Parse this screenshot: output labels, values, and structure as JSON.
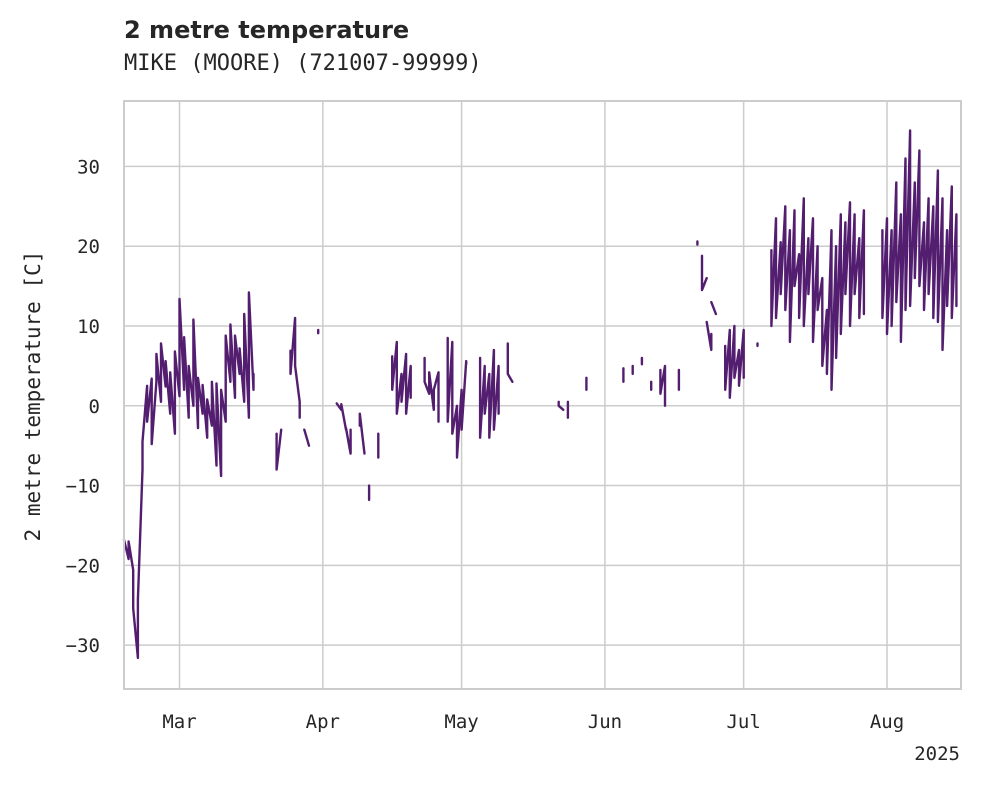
{
  "chart_data": {
    "type": "line",
    "title": "2 metre temperature",
    "subtitle": "MIKE (MOORE) (721007-99999)",
    "ylabel": "2 metre temperature [C]",
    "xlabel": "",
    "x_tick_labels": [
      "Mar",
      "Apr",
      "May",
      "Jun",
      "Jul",
      "Aug"
    ],
    "x_year_label": "2025",
    "y_ticks": [
      -30,
      -20,
      -10,
      0,
      10,
      20,
      30
    ],
    "xlim": [
      "2025-02-17",
      "2025-08-17"
    ],
    "ylim": [
      -35.5,
      38.2
    ],
    "grid": true,
    "colors": {
      "line": "#531e6f",
      "grid": "#cccccc",
      "frame": "#cccccc"
    },
    "series": [
      {
        "values": [
          [
            "2025-02-17",
            -16.8
          ],
          [
            "2025-02-18",
            -19.2
          ],
          [
            "2025-02-18",
            -17.0
          ],
          [
            "2025-02-19",
            -20.6
          ],
          [
            "2025-02-19",
            -25.4
          ],
          [
            "2025-02-20",
            -31.6
          ],
          [
            "2025-02-20",
            -24.3
          ],
          [
            "2025-02-21",
            -8.0
          ],
          [
            "2025-02-21",
            -4.5
          ],
          [
            "2025-02-22",
            2.5
          ],
          [
            "2025-02-22",
            -2.0
          ],
          [
            "2025-02-23",
            3.4
          ],
          [
            "2025-02-23",
            -4.8
          ],
          [
            "2025-02-24",
            3.0
          ],
          [
            "2025-02-24",
            6.5
          ],
          [
            "2025-02-25",
            0.5
          ],
          [
            "2025-02-25",
            7.8
          ],
          [
            "2025-02-26",
            2.4
          ],
          [
            "2025-02-26",
            5.6
          ],
          [
            "2025-02-27",
            -1.0
          ],
          [
            "2025-02-27",
            4.2
          ],
          [
            "2025-02-28",
            -3.5
          ],
          [
            "2025-02-28",
            6.8
          ],
          [
            "2025-03-01",
            1.2
          ],
          [
            "2025-03-01",
            13.4
          ],
          [
            "2025-03-02",
            2.0
          ],
          [
            "2025-03-02",
            8.6
          ],
          [
            "2025-03-03",
            -1.5
          ],
          [
            "2025-03-03",
            5.0
          ],
          [
            "2025-03-04",
            0.0
          ],
          [
            "2025-03-04",
            10.8
          ],
          [
            "2025-03-05",
            -2.8
          ],
          [
            "2025-03-05",
            3.5
          ],
          [
            "2025-03-06",
            -1.0
          ],
          [
            "2025-03-06",
            2.6
          ],
          [
            "2025-03-07",
            -4.0
          ],
          [
            "2025-03-07",
            0.8
          ],
          [
            "2025-03-08",
            -2.5
          ],
          [
            "2025-03-08",
            3.0
          ],
          [
            "2025-03-09",
            -7.5
          ],
          [
            "2025-03-09",
            2.8
          ],
          [
            "2025-03-10",
            -8.8
          ],
          [
            "2025-03-10",
            2.0
          ],
          [
            "2025-03-11",
            -2.0
          ],
          [
            "2025-03-11",
            8.8
          ],
          [
            "2025-03-12",
            3.0
          ],
          [
            "2025-03-12",
            10.2
          ],
          [
            "2025-03-13",
            1.0
          ],
          [
            "2025-03-13",
            8.8
          ],
          [
            "2025-03-14",
            4.0
          ],
          [
            "2025-03-14",
            7.2
          ],
          [
            "2025-03-15",
            0.5
          ],
          [
            "2025-03-15",
            11.5
          ],
          [
            "2025-03-16",
            -1.5
          ],
          [
            "2025-03-16",
            14.2
          ],
          [
            "2025-03-17",
            2.0
          ],
          [
            "2025-03-17",
            4.0
          ],
          null,
          [
            "2025-03-25",
            6.9
          ],
          [
            "2025-03-25",
            4.0
          ],
          [
            "2025-03-26",
            11.0
          ],
          [
            "2025-03-26",
            5.0
          ],
          [
            "2025-03-27",
            0.5
          ],
          [
            "2025-03-27",
            -1.5
          ],
          null,
          [
            "2025-03-22",
            -3.5
          ],
          [
            "2025-03-22",
            -8.0
          ],
          [
            "2025-03-23",
            -3.0
          ],
          null,
          [
            "2025-03-28",
            -3.0
          ],
          [
            "2025-03-29",
            -5.0
          ],
          null,
          [
            "2025-03-31",
            9.5
          ],
          [
            "2025-03-31",
            9.1
          ],
          null,
          [
            "2025-04-04",
            0.3
          ],
          [
            "2025-04-05",
            -0.5
          ],
          [
            "2025-04-05",
            0.2
          ],
          [
            "2025-04-06",
            -3.0
          ],
          [
            "2025-04-06",
            -2.8
          ],
          [
            "2025-04-07",
            -6.0
          ],
          [
            "2025-04-07",
            -3.0
          ],
          null,
          [
            "2025-04-09",
            -2.5
          ],
          [
            "2025-04-09",
            -1.0
          ],
          [
            "2025-04-10",
            -6.0
          ],
          null,
          [
            "2025-04-11",
            -10.0
          ],
          [
            "2025-04-11",
            -11.8
          ],
          null,
          [
            "2025-04-13",
            -3.5
          ],
          [
            "2025-04-13",
            -6.5
          ],
          null,
          [
            "2025-04-16",
            6.2
          ],
          [
            "2025-04-16",
            2.0
          ],
          [
            "2025-04-17",
            8.0
          ],
          [
            "2025-04-17",
            -1.0
          ],
          [
            "2025-04-18",
            4.0
          ],
          [
            "2025-04-18",
            0.5
          ],
          [
            "2025-04-19",
            6.5
          ],
          [
            "2025-04-19",
            -1.0
          ],
          [
            "2025-04-20",
            5.0
          ],
          [
            "2025-04-20",
            1.0
          ],
          null,
          [
            "2025-04-23",
            6.0
          ],
          [
            "2025-04-23",
            3.0
          ],
          [
            "2025-04-24",
            1.5
          ],
          [
            "2025-04-24",
            4.2
          ],
          [
            "2025-04-25",
            -0.5
          ],
          [
            "2025-04-25",
            2.0
          ],
          [
            "2025-04-26",
            4.2
          ],
          [
            "2025-04-26",
            -2.0
          ],
          null,
          [
            "2025-04-28",
            8.5
          ],
          [
            "2025-04-28",
            -2.0
          ],
          [
            "2025-04-29",
            8.0
          ],
          [
            "2025-04-29",
            -3.5
          ],
          [
            "2025-04-30",
            0.0
          ],
          [
            "2025-04-30",
            -6.5
          ],
          [
            "2025-05-01",
            2.0
          ],
          [
            "2025-05-01",
            -3.0
          ],
          [
            "2025-05-02",
            5.6
          ],
          [
            "2025-05-02",
            5.2
          ],
          null,
          [
            "2025-05-05",
            6.0
          ],
          [
            "2025-05-05",
            -4.0
          ],
          [
            "2025-05-06",
            5.0
          ],
          [
            "2025-05-06",
            -1.0
          ],
          [
            "2025-05-07",
            4.0
          ],
          [
            "2025-05-07",
            -4.0
          ],
          [
            "2025-05-08",
            7.0
          ],
          [
            "2025-05-08",
            -3.0
          ],
          [
            "2025-05-09",
            5.0
          ],
          [
            "2025-05-09",
            -1.0
          ],
          null,
          [
            "2025-05-11",
            7.8
          ],
          [
            "2025-05-11",
            4.0
          ],
          [
            "2025-05-12",
            3.0
          ],
          null,
          [
            "2025-05-22",
            0.5
          ],
          [
            "2025-05-22",
            0.0
          ],
          [
            "2025-05-23",
            -0.5
          ],
          null,
          [
            "2025-05-24",
            0.5
          ],
          [
            "2025-05-24",
            -1.5
          ],
          null,
          [
            "2025-05-28",
            3.5
          ],
          [
            "2025-05-28",
            2.0
          ],
          null,
          [
            "2025-06-05",
            4.7
          ],
          [
            "2025-06-05",
            3.0
          ],
          null,
          [
            "2025-06-07",
            5.0
          ],
          [
            "2025-06-07",
            4.0
          ],
          null,
          [
            "2025-06-09",
            6.0
          ],
          [
            "2025-06-09",
            5.2
          ],
          null,
          [
            "2025-06-11",
            3.0
          ],
          [
            "2025-06-11",
            2.0
          ],
          null,
          [
            "2025-06-13",
            4.5
          ],
          [
            "2025-06-13",
            1.5
          ],
          [
            "2025-06-14",
            5.0
          ],
          [
            "2025-06-14",
            0.0
          ],
          null,
          [
            "2025-06-17",
            4.5
          ],
          [
            "2025-06-17",
            2.0
          ],
          null,
          [
            "2025-06-21",
            20.6
          ],
          [
            "2025-06-21",
            20.2
          ],
          null,
          [
            "2025-06-22",
            18.8
          ],
          [
            "2025-06-22",
            14.5
          ],
          [
            "2025-06-23",
            16.0
          ],
          null,
          [
            "2025-06-23",
            10.5
          ],
          [
            "2025-06-24",
            7.0
          ],
          [
            "2025-06-24",
            9.0
          ],
          null,
          [
            "2025-06-24",
            13.0
          ],
          [
            "2025-06-25",
            11.5
          ],
          null,
          [
            "2025-06-27",
            7.5
          ],
          [
            "2025-06-27",
            2.0
          ],
          [
            "2025-06-28",
            9.5
          ],
          [
            "2025-06-28",
            1.0
          ],
          [
            "2025-06-29",
            10.0
          ],
          [
            "2025-06-29",
            3.5
          ],
          [
            "2025-06-30",
            7.0
          ],
          [
            "2025-06-30",
            2.5
          ],
          [
            "2025-07-01",
            9.5
          ],
          [
            "2025-07-01",
            3.5
          ],
          null,
          [
            "2025-07-04",
            7.8
          ],
          [
            "2025-07-04",
            7.5
          ],
          null,
          [
            "2025-07-07",
            19.5
          ],
          [
            "2025-07-07",
            10.0
          ],
          [
            "2025-07-08",
            23.5
          ],
          [
            "2025-07-08",
            11.0
          ],
          [
            "2025-07-09",
            20.5
          ],
          [
            "2025-07-09",
            14.0
          ],
          [
            "2025-07-10",
            25.0
          ],
          [
            "2025-07-10",
            12.0
          ],
          [
            "2025-07-11",
            22.0
          ],
          [
            "2025-07-11",
            8.0
          ],
          [
            "2025-07-12",
            24.5
          ],
          [
            "2025-07-12",
            15.0
          ],
          [
            "2025-07-13",
            19.0
          ],
          [
            "2025-07-13",
            11.0
          ],
          [
            "2025-07-14",
            26.0
          ],
          [
            "2025-07-14",
            10.0
          ],
          [
            "2025-07-15",
            21.0
          ],
          [
            "2025-07-15",
            14.0
          ],
          [
            "2025-07-16",
            23.5
          ],
          [
            "2025-07-16",
            8.0
          ],
          [
            "2025-07-17",
            20.0
          ],
          [
            "2025-07-17",
            12.0
          ],
          [
            "2025-07-18",
            16.0
          ],
          [
            "2025-07-18",
            5.0
          ],
          [
            "2025-07-19",
            12.0
          ],
          [
            "2025-07-19",
            4.0
          ],
          [
            "2025-07-20",
            22.0
          ],
          [
            "2025-07-20",
            2.0
          ],
          [
            "2025-07-21",
            20.0
          ],
          [
            "2025-07-21",
            6.0
          ],
          [
            "2025-07-22",
            24.0
          ],
          [
            "2025-07-22",
            9.0
          ],
          [
            "2025-07-23",
            23.0
          ],
          [
            "2025-07-23",
            14.0
          ],
          [
            "2025-07-24",
            25.5
          ],
          [
            "2025-07-24",
            10.0
          ],
          [
            "2025-07-25",
            24.0
          ],
          [
            "2025-07-25",
            14.0
          ],
          [
            "2025-07-26",
            21.0
          ],
          [
            "2025-07-26",
            11.0
          ],
          [
            "2025-07-27",
            24.5
          ],
          [
            "2025-07-27",
            11.5
          ],
          null,
          [
            "2025-07-31",
            22.0
          ],
          [
            "2025-07-31",
            11.0
          ],
          [
            "2025-08-01",
            23.5
          ],
          [
            "2025-08-01",
            9.0
          ],
          [
            "2025-08-02",
            22.0
          ],
          [
            "2025-08-02",
            10.0
          ],
          [
            "2025-08-03",
            28.0
          ],
          [
            "2025-08-03",
            13.0
          ],
          [
            "2025-08-04",
            24.0
          ],
          [
            "2025-08-04",
            8.0
          ],
          [
            "2025-08-05",
            31.0
          ],
          [
            "2025-08-05",
            12.0
          ],
          [
            "2025-08-06",
            34.5
          ],
          [
            "2025-08-06",
            12.5
          ],
          [
            "2025-08-07",
            28.0
          ],
          [
            "2025-08-07",
            16.0
          ],
          [
            "2025-08-08",
            32.0
          ],
          [
            "2025-08-08",
            15.0
          ],
          [
            "2025-08-09",
            23.0
          ],
          [
            "2025-08-09",
            12.0
          ],
          [
            "2025-08-10",
            26.0
          ],
          [
            "2025-08-10",
            14.0
          ],
          [
            "2025-08-11",
            25.0
          ],
          [
            "2025-08-11",
            11.0
          ],
          [
            "2025-08-12",
            29.5
          ],
          [
            "2025-08-12",
            10.5
          ],
          [
            "2025-08-13",
            26.0
          ],
          [
            "2025-08-13",
            7.0
          ],
          [
            "2025-08-14",
            22.0
          ],
          [
            "2025-08-14",
            12.5
          ],
          [
            "2025-08-15",
            27.5
          ],
          [
            "2025-08-15",
            11.0
          ],
          [
            "2025-08-16",
            24.0
          ],
          [
            "2025-08-16",
            12.5
          ]
        ]
      }
    ]
  }
}
